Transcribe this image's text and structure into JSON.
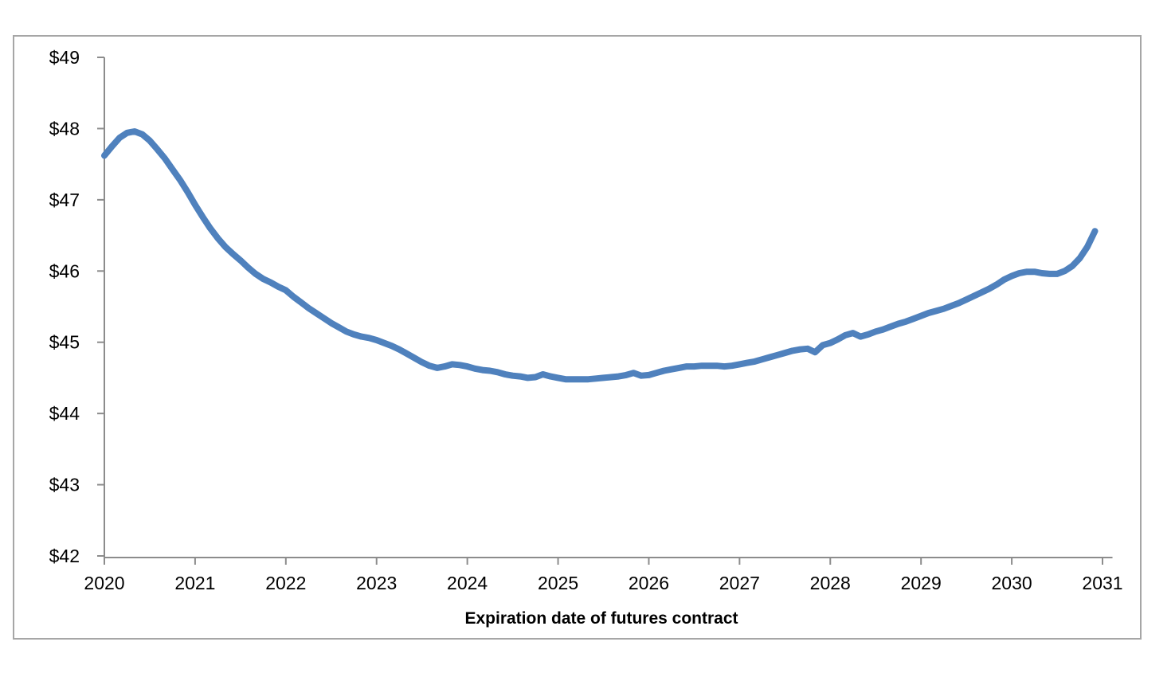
{
  "colors": {
    "line": "#4F81BD",
    "axis": "#8C8C8C",
    "border": "#A6A6A6",
    "text": "#000000",
    "background": "#FFFFFF"
  },
  "chart_data": {
    "type": "line",
    "title": "",
    "xlabel": "Expiration date of futures contract",
    "ylabel": "",
    "grid": false,
    "legend": "none",
    "xlim": [
      2020,
      2031.11
    ],
    "ylim": [
      42,
      49
    ],
    "x_ticks": [
      2020,
      2021,
      2022,
      2023,
      2024,
      2025,
      2026,
      2027,
      2028,
      2029,
      2030,
      2031
    ],
    "x_tick_labels": [
      "2020",
      "2021",
      "2022",
      "2023",
      "2024",
      "2025",
      "2026",
      "2027",
      "2028",
      "2029",
      "2030",
      "2031"
    ],
    "y_ticks": [
      42,
      43,
      44,
      45,
      46,
      47,
      48,
      49
    ],
    "y_tick_labels": [
      "$42",
      "$43",
      "$44",
      "$45",
      "$46",
      "$47",
      "$48",
      "$49"
    ],
    "series": [
      {
        "name": "futures-price-curve",
        "color": "#4F81BD",
        "line_width": 8,
        "x": [
          2020.0,
          2020.083,
          2020.167,
          2020.25,
          2020.333,
          2020.417,
          2020.5,
          2020.583,
          2020.667,
          2020.75,
          2020.833,
          2020.917,
          2021.0,
          2021.083,
          2021.167,
          2021.25,
          2021.333,
          2021.417,
          2021.5,
          2021.583,
          2021.667,
          2021.75,
          2021.833,
          2021.917,
          2022.0,
          2022.083,
          2022.167,
          2022.25,
          2022.333,
          2022.417,
          2022.5,
          2022.583,
          2022.667,
          2022.75,
          2022.833,
          2022.917,
          2023.0,
          2023.083,
          2023.167,
          2023.25,
          2023.333,
          2023.417,
          2023.5,
          2023.583,
          2023.667,
          2023.75,
          2023.833,
          2023.917,
          2024.0,
          2024.083,
          2024.167,
          2024.25,
          2024.333,
          2024.417,
          2024.5,
          2024.583,
          2024.667,
          2024.75,
          2024.833,
          2024.917,
          2025.0,
          2025.083,
          2025.167,
          2025.25,
          2025.333,
          2025.417,
          2025.5,
          2025.583,
          2025.667,
          2025.75,
          2025.833,
          2025.917,
          2026.0,
          2026.083,
          2026.167,
          2026.25,
          2026.333,
          2026.417,
          2026.5,
          2026.583,
          2026.667,
          2026.75,
          2026.833,
          2026.917,
          2027.0,
          2027.083,
          2027.167,
          2027.25,
          2027.333,
          2027.417,
          2027.5,
          2027.583,
          2027.667,
          2027.75,
          2027.833,
          2027.917,
          2028.0,
          2028.083,
          2028.167,
          2028.25,
          2028.333,
          2028.417,
          2028.5,
          2028.583,
          2028.667,
          2028.75,
          2028.833,
          2028.917,
          2029.0,
          2029.083,
          2029.167,
          2029.25,
          2029.333,
          2029.417,
          2029.5,
          2029.583,
          2029.667,
          2029.75,
          2029.833,
          2029.917,
          2030.0,
          2030.083,
          2030.167,
          2030.25,
          2030.333,
          2030.417,
          2030.5,
          2030.583,
          2030.667,
          2030.75,
          2030.833,
          2030.917
        ],
        "y": [
          47.62,
          47.75,
          47.87,
          47.94,
          47.96,
          47.92,
          47.83,
          47.71,
          47.58,
          47.43,
          47.28,
          47.11,
          46.93,
          46.76,
          46.6,
          46.46,
          46.34,
          46.24,
          46.15,
          46.05,
          45.96,
          45.89,
          45.84,
          45.78,
          45.73,
          45.64,
          45.56,
          45.48,
          45.41,
          45.34,
          45.27,
          45.21,
          45.15,
          45.11,
          45.08,
          45.06,
          45.03,
          44.99,
          44.95,
          44.9,
          44.84,
          44.78,
          44.72,
          44.67,
          44.64,
          44.66,
          44.69,
          44.68,
          44.66,
          44.63,
          44.61,
          44.6,
          44.58,
          44.55,
          44.53,
          44.52,
          44.5,
          44.51,
          44.55,
          44.52,
          44.5,
          44.48,
          44.48,
          44.48,
          44.48,
          44.49,
          44.5,
          44.51,
          44.52,
          44.54,
          44.57,
          44.53,
          44.54,
          44.57,
          44.6,
          44.62,
          44.64,
          44.66,
          44.66,
          44.67,
          44.67,
          44.67,
          44.66,
          44.67,
          44.69,
          44.71,
          44.73,
          44.76,
          44.79,
          44.82,
          44.85,
          44.88,
          44.9,
          44.91,
          44.86,
          44.96,
          44.99,
          45.04,
          45.1,
          45.13,
          45.08,
          45.11,
          45.15,
          45.18,
          45.22,
          45.26,
          45.29,
          45.33,
          45.37,
          45.41,
          45.44,
          45.47,
          45.51,
          45.55,
          45.6,
          45.65,
          45.7,
          45.75,
          45.81,
          45.88,
          45.93,
          45.97,
          45.99,
          45.99,
          45.97,
          45.96,
          45.96,
          46.0,
          46.07,
          46.18,
          46.34,
          46.56
        ]
      }
    ]
  }
}
